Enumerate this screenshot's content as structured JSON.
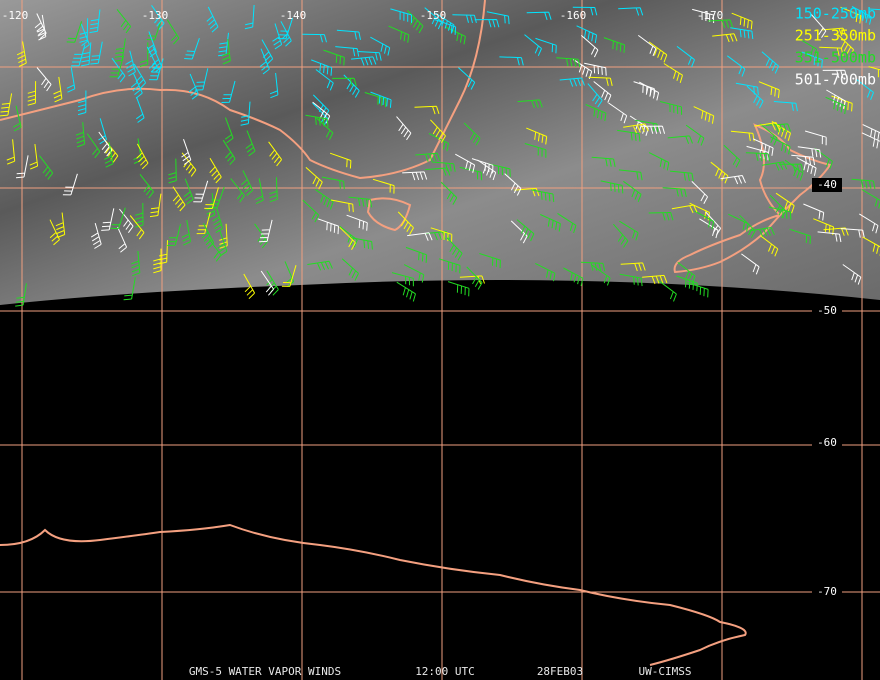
{
  "map": {
    "lon_labels": [
      "-120",
      "-130",
      "-140",
      "-150",
      "-160",
      "-170"
    ],
    "lat_labels": [
      "-40",
      "-50",
      "-60",
      "-70"
    ],
    "legend": [
      {
        "label": "150-250mb",
        "color": "#00e5ff"
      },
      {
        "label": "251-350mb",
        "color": "#ffff00"
      },
      {
        "label": "351-500mb",
        "color": "#22dd22"
      },
      {
        "label": "501-700mb",
        "color": "#ffffff"
      }
    ],
    "footer": [
      "GMS-5 WATER VAPOR WINDS",
      "12:00 UTC",
      "28FEB03",
      "UW-CIMSS"
    ]
  }
}
